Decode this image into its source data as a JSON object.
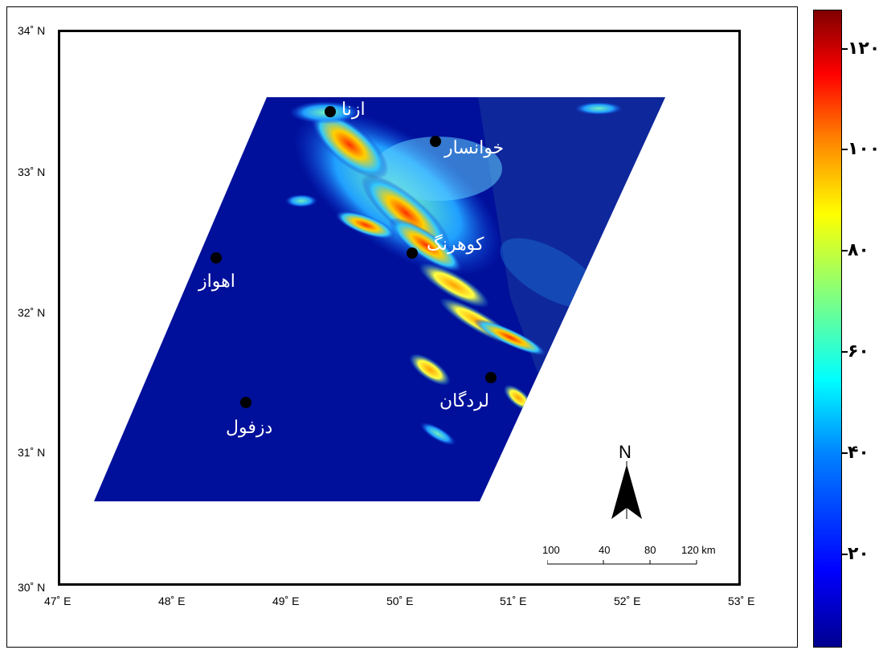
{
  "latitudes": [
    {
      "label": "34˚ N"
    },
    {
      "label": "33˚ N"
    },
    {
      "label": "32˚ N"
    },
    {
      "label": "31˚ N"
    },
    {
      "label": "30˚ N"
    }
  ],
  "longitudes": [
    {
      "label": "47˚ E"
    },
    {
      "label": "48˚ E"
    },
    {
      "label": "49˚ E"
    },
    {
      "label": "50˚ E"
    },
    {
      "label": "51˚ E"
    },
    {
      "label": "52˚ E"
    },
    {
      "label": "53˚ E"
    }
  ],
  "cities": [
    {
      "name": "ازنا"
    },
    {
      "name": "خوانسار"
    },
    {
      "name": "کوهرنگ"
    },
    {
      "name": "اهواز"
    },
    {
      "name": "لردگان"
    },
    {
      "name": "دزفول"
    }
  ],
  "north_arrow": {
    "label": "N"
  },
  "scale_bar": {
    "labels": [
      "100",
      "40",
      "80",
      "120 km"
    ]
  },
  "colorbar": {
    "ticks": [
      "۱۲۰",
      "۱۰۰",
      "۸۰",
      "۶۰",
      "۴۰",
      "۲۰"
    ],
    "colors": {
      "low": "#00008f",
      "mid": "#00ffff",
      "high": "#800000"
    }
  },
  "colors": {
    "background_field": "#0a14a8",
    "plains": "#00109a"
  }
}
